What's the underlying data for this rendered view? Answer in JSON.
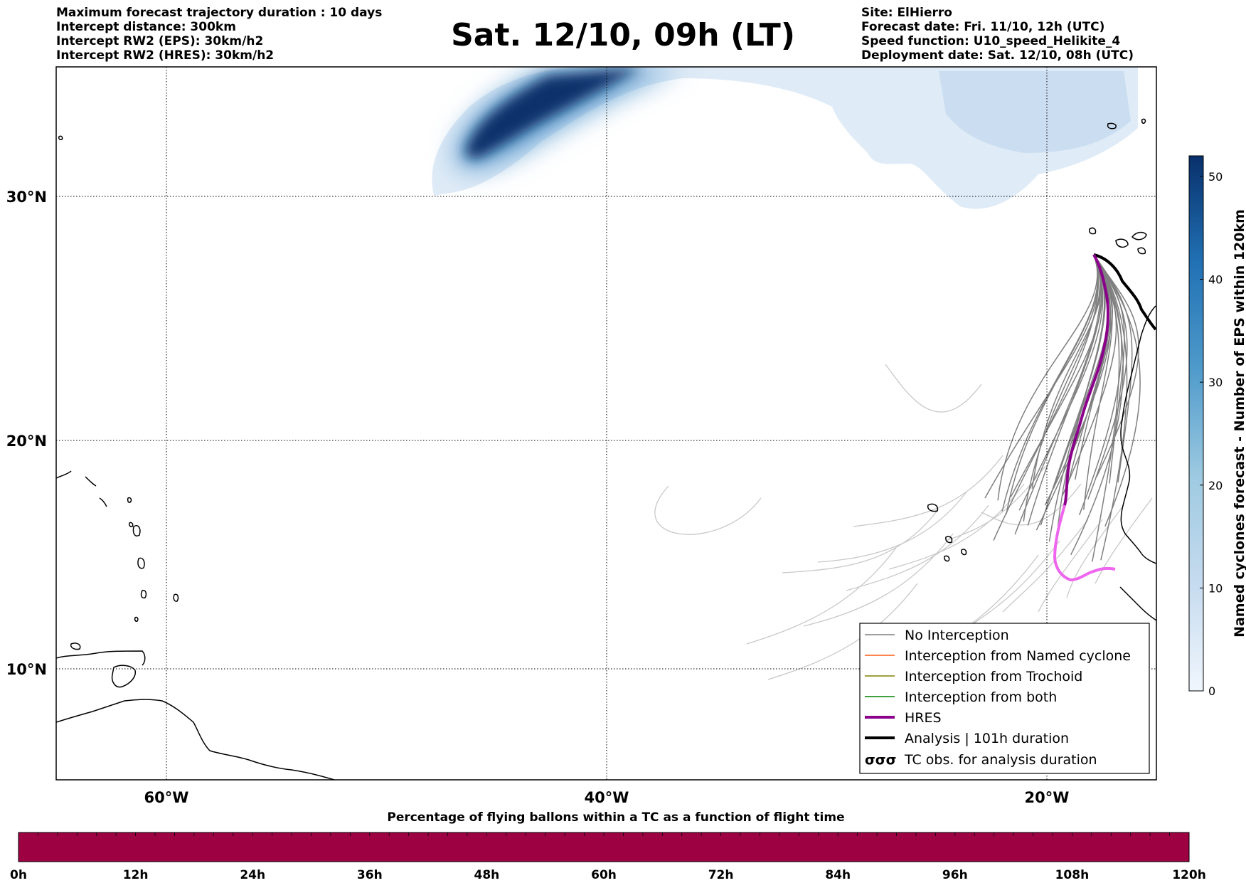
{
  "header_left": [
    "Maximum forecast trajectory duration : 10 days",
    "Intercept distance: 300km",
    "Intercept RW2 (EPS):  30km/h2",
    "Intercept RW2 (HRES): 30km/h2"
  ],
  "header_right": [
    "Site: ElHierro",
    "Forecast date: Fri. 11/10, 12h (UTC)",
    "Speed function: U10_speed_Helikite_4",
    "Deployment date: Sat. 12/10, 08h (UTC)"
  ],
  "title": "Sat. 12/10, 09h (LT)",
  "map": {
    "lat_labels": [
      "30°N",
      "20°N",
      "10°N"
    ],
    "lon_labels": [
      "60°W",
      "40°W",
      "20°W"
    ],
    "gridlines": true
  },
  "legend": {
    "items": [
      {
        "label": "No Interception",
        "color": "#7f7f7f"
      },
      {
        "label": "Interception from Named cyclone",
        "color": "#ff5a14"
      },
      {
        "label": "Interception from Trochoid",
        "color": "#808000"
      },
      {
        "label": "Interception from both",
        "color": "#008000"
      },
      {
        "label": "HRES",
        "color": "#8b008b"
      },
      {
        "label": "Analysis | 101h duration",
        "color": "#000000"
      },
      {
        "label": "TC obs. for analysis duration",
        "color": "#000000"
      }
    ],
    "tc_symbol": "σσσ"
  },
  "colorbar": {
    "title": "Named cyclones forecast - Number of EPS within 120km",
    "ticks": [
      "0",
      "10",
      "20",
      "30",
      "40",
      "50"
    ],
    "min": 0,
    "max": 52,
    "color_low": "#f0f6fd",
    "color_high": "#08306b"
  },
  "time_bar": {
    "title": "Percentage of flying ballons within a TC as a function of flight time",
    "ticks": [
      "0h",
      "12h",
      "24h",
      "36h",
      "48h",
      "60h",
      "72h",
      "84h",
      "96h",
      "108h",
      "120h"
    ],
    "fill_color": "#9e0142"
  },
  "colors": {
    "no_interception": "#7f7f7f",
    "light_trajectory": "#c8c8c8",
    "hres": "#8b008b",
    "hres_later": "#ee66ee",
    "analysis": "#000000",
    "coast": "#000000"
  }
}
